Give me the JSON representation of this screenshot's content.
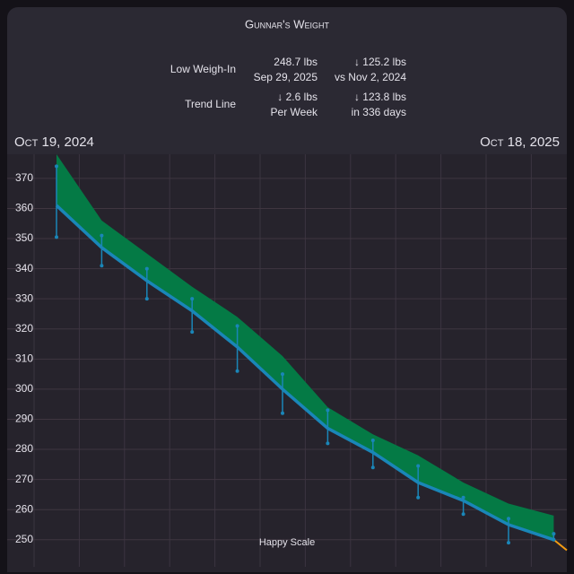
{
  "header": {
    "title": "Gunnar's Weight",
    "stats": [
      {
        "label": "Low Weigh-In",
        "value": "248.7 lbs",
        "sub": "Sep 29, 2025",
        "change": "↓ 125.2 lbs",
        "change_sub": "vs Nov 2, 2024"
      },
      {
        "label": "Trend Line",
        "value": "↓ 2.6 lbs",
        "sub": "Per Week",
        "change": "↓ 123.8 lbs",
        "change_sub": "in 336 days"
      }
    ],
    "start_date": "Oct 19, 2024",
    "end_date": "Oct 18, 2025"
  },
  "chart_data": {
    "type": "weight",
    "categories": [
      null,
      null,
      null,
      null,
      null,
      null,
      null,
      null,
      null,
      null,
      null,
      null
    ],
    "trend": {
      "color": "#1a86b8",
      "values": [
        361,
        347,
        336,
        326,
        314,
        300,
        287,
        279,
        269,
        263,
        255,
        250
      ]
    },
    "band_high": {
      "color": "#047a45",
      "values": [
        378,
        356,
        345,
        334,
        324,
        311,
        294,
        285,
        278,
        269,
        262,
        258
      ]
    },
    "high": {
      "color": "#1a86b8",
      "values": [
        374,
        351,
        340,
        330,
        321,
        305,
        293,
        283,
        274.5,
        264,
        257,
        252
      ]
    },
    "low": {
      "color": "#1a86b8",
      "values": [
        350.5,
        341,
        330,
        319,
        306,
        292,
        282,
        274,
        264,
        258.5,
        249,
        250
      ]
    },
    "projection": {
      "color": "#f39c12",
      "values": [
        250,
        246.5
      ]
    },
    "ylim": [
      241,
      378
    ],
    "yticks": [
      250,
      260,
      270,
      280,
      290,
      300,
      310,
      320,
      330,
      340,
      350,
      360,
      370
    ],
    "grid": true
  },
  "footer": "Happy Scale"
}
